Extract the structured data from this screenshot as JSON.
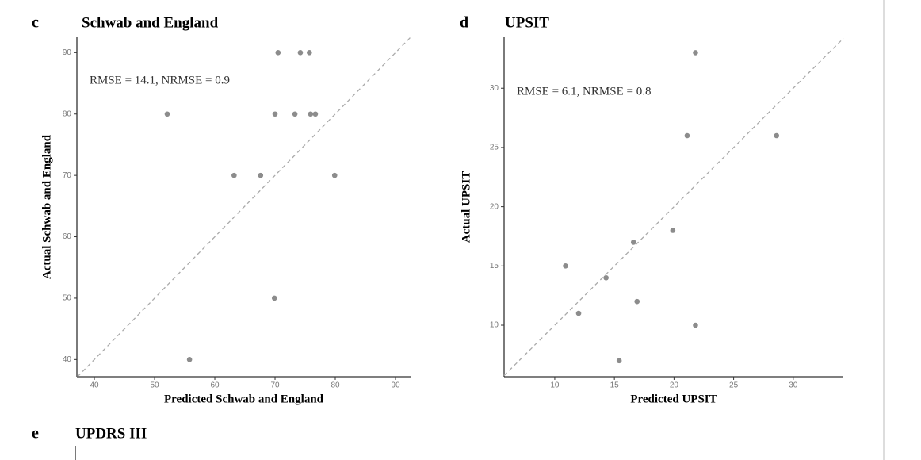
{
  "chart_data": [
    {
      "type": "scatter",
      "panel": "c",
      "title": "Schwab and England",
      "x_label": "Predicted Schwab and England",
      "y_label": "Actual Schwab and England",
      "annotation": "RMSE = 14.1, NRMSE = 0.9",
      "x": [
        70.5,
        74.2,
        75.7,
        52.1,
        70.0,
        73.3,
        75.9,
        76.7,
        63.2,
        67.6,
        79.9,
        69.9,
        55.8
      ],
      "values": [
        90,
        90,
        90,
        80,
        80,
        80,
        80,
        80,
        70,
        70,
        70,
        50,
        40
      ],
      "color": "#8c8c8c",
      "diagonal": true,
      "xlim": [
        37.1,
        92.5
      ],
      "xticks": [
        40,
        50,
        60,
        70,
        80,
        90
      ],
      "ylim": [
        37.2,
        92.5
      ],
      "yticks": [
        40,
        50,
        60,
        70,
        80,
        90
      ]
    },
    {
      "type": "scatter",
      "panel": "d",
      "title": "UPSIT",
      "x_label": "Predicted UPSIT",
      "y_label": "Actual UPSIT",
      "annotation": "RMSE = 6.1, NRMSE = 0.8",
      "x": [
        21.8,
        21.1,
        28.6,
        19.9,
        16.6,
        10.9,
        14.3,
        16.9,
        12.0,
        21.8,
        15.4
      ],
      "values": [
        33,
        26,
        26,
        18,
        17,
        15,
        14,
        12,
        11,
        10,
        7
      ],
      "color": "#8c8c8c",
      "diagonal": true,
      "xlim": [
        5.75,
        34.2
      ],
      "xticks": [
        10,
        15,
        20,
        25,
        30
      ],
      "ylim": [
        5.65,
        34.3
      ],
      "yticks": [
        10,
        15,
        20,
        25,
        30
      ]
    },
    {
      "type": "scatter",
      "panel": "e",
      "title": "UPDRS III"
    }
  ]
}
